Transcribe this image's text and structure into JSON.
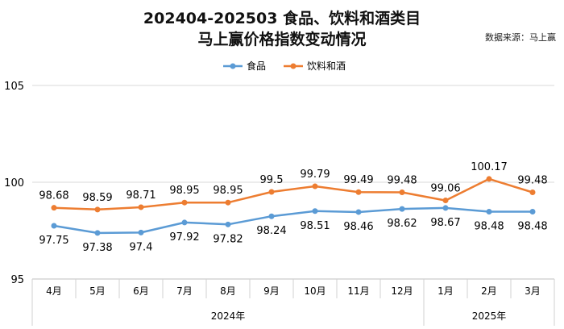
{
  "chart_data": {
    "type": "line",
    "title": "202404-202503 食品、饮料和酒类目",
    "subtitle": "马上赢价格指数变动情况",
    "source": "数据来源：马上赢",
    "categories": [
      "4月",
      "5月",
      "6月",
      "7月",
      "8月",
      "9月",
      "10月",
      "11月",
      "12月",
      "1月",
      "2月",
      "3月"
    ],
    "year_groups": [
      {
        "label": "2024年",
        "count": 9
      },
      {
        "label": "2025年",
        "count": 3
      }
    ],
    "series": [
      {
        "name": "食品",
        "color": "#5b9bd5",
        "values": [
          97.75,
          97.38,
          97.4,
          97.92,
          97.82,
          98.24,
          98.51,
          98.46,
          98.62,
          98.67,
          98.48,
          98.48
        ],
        "labels": [
          "97.75",
          "97.38",
          "97.4",
          "97.92",
          "97.82",
          "98.24",
          "98.51",
          "98.46",
          "98.62",
          "98.67",
          "98.48",
          "98.48"
        ],
        "label_position": "below"
      },
      {
        "name": "饮料和酒",
        "color": "#ed7d31",
        "values": [
          98.68,
          98.59,
          98.71,
          98.95,
          98.95,
          99.5,
          99.79,
          99.49,
          99.48,
          99.06,
          100.17,
          99.48
        ],
        "labels": [
          "98.68",
          "98.59",
          "98.71",
          "98.95",
          "98.95",
          "99.5",
          "99.79",
          "99.49",
          "99.48",
          "99.06",
          "100.17",
          "99.48"
        ],
        "label_position": "above"
      }
    ],
    "ylim": [
      95,
      105
    ],
    "yticks": [
      95,
      100,
      105
    ],
    "ytick_labels": [
      "95",
      "100",
      "105"
    ],
    "grid": true,
    "legend_position": "top"
  }
}
